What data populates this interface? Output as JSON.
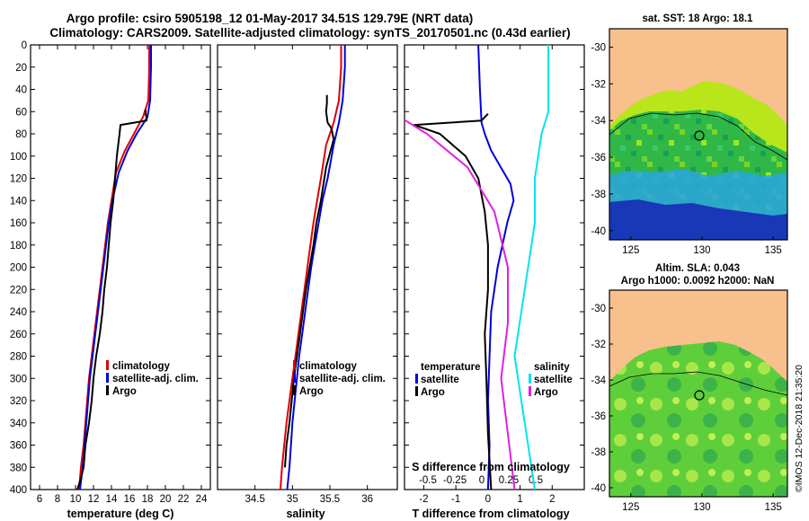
{
  "title_lines": [
    "Argo profile: csiro 5905198_12 01-May-2017 34.51S 129.79E (NRT data)",
    "Climatology: CARS2009. Satellite-adjusted climatology: synTS_20170501.nc (0.43d earlier)"
  ],
  "colors": {
    "climatology": "#e00000",
    "satellite": "#0000dd",
    "argo": "#000000",
    "s_satellite": "#00e5ee",
    "s_argo": "#e020e0",
    "land": "#f8c08c"
  },
  "chart_data": [
    {
      "type": "line",
      "name": "temperature-profile",
      "xlabel": "temperature (deg C)",
      "ylabel": "",
      "xlim": [
        5,
        25
      ],
      "ylim": [
        0,
        400
      ],
      "y_inverted": true,
      "xticks": [
        6,
        8,
        10,
        12,
        14,
        16,
        18,
        20,
        22,
        24
      ],
      "yticks": [
        0,
        20,
        40,
        60,
        80,
        100,
        120,
        140,
        160,
        180,
        200,
        220,
        240,
        260,
        280,
        300,
        320,
        340,
        360,
        380,
        400
      ],
      "legend": [
        "climatology",
        "satellite-adj. clim.",
        "Argo"
      ],
      "legend_location": "lower-right",
      "series": [
        {
          "name": "climatology",
          "x": [
            18.2,
            18.2,
            18.1,
            17.5,
            16.5,
            15.5,
            14.5,
            14.0,
            13.6,
            13.3,
            13.0,
            12.7,
            12.4,
            12.1,
            11.8,
            11.5,
            11.3,
            11.1,
            10.9,
            10.6,
            10.4
          ],
          "y": [
            0,
            20,
            50,
            65,
            80,
            95,
            115,
            140,
            160,
            180,
            200,
            220,
            240,
            260,
            280,
            300,
            320,
            340,
            360,
            380,
            400
          ]
        },
        {
          "name": "satellite-adj. clim.",
          "x": [
            18.4,
            18.4,
            18.3,
            18.0,
            16.8,
            15.8,
            14.8,
            14.1,
            13.7,
            13.4,
            13.1,
            12.8,
            12.5,
            12.2,
            11.9,
            11.6,
            11.4,
            11.2,
            11.0,
            10.8,
            10.5
          ],
          "y": [
            0,
            20,
            50,
            65,
            80,
            95,
            115,
            140,
            160,
            180,
            200,
            220,
            240,
            260,
            280,
            300,
            320,
            340,
            360,
            380,
            400
          ]
        },
        {
          "name": "Argo",
          "x": [
            17.8,
            17.8,
            17.9,
            17.9,
            16.5,
            15.0,
            14.9,
            14.6,
            14.4,
            14.2,
            13.9,
            13.7,
            13.5,
            13.2,
            13.0,
            12.7,
            12.3,
            12.0,
            11.8,
            11.5,
            11.1,
            10.9,
            10.6,
            10.4,
            10.2
          ],
          "y": [
            58,
            62,
            65,
            68,
            70,
            72,
            80,
            100,
            120,
            140,
            160,
            180,
            200,
            220,
            240,
            260,
            280,
            300,
            320,
            340,
            360,
            380,
            390,
            395,
            400
          ]
        }
      ]
    },
    {
      "type": "line",
      "name": "salinity-profile",
      "xlabel": "salinity",
      "ylabel": "",
      "xlim": [
        34.0,
        36.4
      ],
      "ylim": [
        0,
        400
      ],
      "y_inverted": true,
      "xticks": [
        34.5,
        35,
        35.5,
        36
      ],
      "legend": [
        "climatology",
        "satellite-adj. clim.",
        "Argo"
      ],
      "legend_location": "lower-right",
      "series": [
        {
          "name": "climatology",
          "x": [
            35.65,
            35.65,
            35.62,
            35.55,
            35.45,
            35.38,
            35.33,
            35.28,
            35.24,
            35.2,
            35.16,
            35.12,
            35.08,
            35.04,
            35.0,
            34.96,
            34.92,
            34.89,
            34.86,
            34.84
          ],
          "y": [
            0,
            20,
            50,
            70,
            90,
            120,
            140,
            160,
            180,
            200,
            220,
            240,
            260,
            280,
            300,
            320,
            340,
            360,
            380,
            400
          ]
        },
        {
          "name": "satellite-adj. clim.",
          "x": [
            35.7,
            35.7,
            35.67,
            35.62,
            35.55,
            35.47,
            35.4,
            35.35,
            35.3,
            35.25,
            35.21,
            35.17,
            35.13,
            35.09,
            35.06,
            35.03,
            35.0,
            34.98,
            34.96,
            34.93
          ],
          "y": [
            0,
            20,
            50,
            70,
            90,
            120,
            140,
            160,
            180,
            200,
            220,
            240,
            260,
            280,
            300,
            320,
            340,
            360,
            380,
            400
          ]
        },
        {
          "name": "Argo",
          "x": [
            35.46,
            35.46,
            35.45,
            35.47,
            35.52,
            35.55,
            35.45,
            35.38,
            35.32,
            35.28,
            35.23,
            35.18,
            35.14,
            35.1,
            35.06,
            35.02,
            34.99,
            34.96,
            34.92,
            34.9
          ],
          "y": [
            45,
            52,
            60,
            70,
            75,
            85,
            110,
            140,
            160,
            180,
            200,
            220,
            240,
            260,
            280,
            300,
            320,
            340,
            360,
            380
          ]
        }
      ]
    },
    {
      "type": "line",
      "name": "difference-profile",
      "xlabel": "T difference from climatology",
      "xlabel_top": "S difference from climatology",
      "xlim": [
        -2.6,
        3.0
      ],
      "ylim": [
        0,
        400
      ],
      "y_inverted": true,
      "xticks": [
        -2,
        -1,
        0,
        1,
        2
      ],
      "xticks_s": [
        -0.5,
        -0.25,
        0,
        0.25,
        0.5
      ],
      "legend_left": [
        "temperature",
        "satellite",
        "Argo"
      ],
      "legend_right": [
        "salinity",
        "satellite",
        "Argo"
      ],
      "series": [
        {
          "name": "T satellite",
          "x": [
            -0.3,
            -0.25,
            -0.2,
            -0.1,
            0.1,
            0.4,
            0.7,
            0.8,
            0.6,
            0.3,
            0.1,
            0.05,
            0.0,
            0.05,
            0.0
          ],
          "y": [
            0,
            40,
            70,
            80,
            95,
            110,
            125,
            140,
            160,
            200,
            240,
            280,
            320,
            360,
            400
          ]
        },
        {
          "name": "T Argo",
          "x": [
            0.0,
            -0.2,
            -2.3,
            -1.5,
            -0.7,
            -0.3,
            -0.1,
            0.0,
            0.0,
            -0.1,
            -0.05,
            0.0,
            0.1
          ],
          "y": [
            62,
            68,
            72,
            80,
            100,
            120,
            150,
            180,
            220,
            260,
            300,
            350,
            400
          ]
        },
        {
          "name": "S satellite",
          "x": [
            0.4,
            0.4,
            0.35,
            0.3,
            0.3,
            0.25,
            0.2,
            0.15,
            0.2,
            0.25,
            0.3
          ],
          "y": [
            0,
            60,
            80,
            120,
            160,
            200,
            240,
            280,
            320,
            360,
            400
          ]
        },
        {
          "name": "S Argo",
          "x": [
            -0.9,
            -0.7,
            -0.5,
            -0.2,
            0.0,
            0.1,
            0.1,
            0.05,
            0.1,
            0.15
          ],
          "y": [
            45,
            65,
            80,
            110,
            150,
            200,
            250,
            300,
            350,
            400
          ]
        }
      ]
    }
  ],
  "maps": [
    {
      "title": "sat. SST: 18 Argo: 18.1",
      "xticks": [
        "125",
        "130",
        "135"
      ],
      "yticks": [
        "-30",
        "-32",
        "-34",
        "-36",
        "-38",
        "-40"
      ]
    },
    {
      "title_lines": [
        "Altim. SLA: 0.043",
        "Argo h1000: 0.0092 h2000: NaN"
      ],
      "xticks": [
        "125",
        "130",
        "135"
      ],
      "yticks": [
        "-30",
        "-32",
        "-34",
        "-36",
        "-38",
        "-40"
      ]
    }
  ],
  "credit": "©IMOS 12-Dec-2018 21:35:20"
}
